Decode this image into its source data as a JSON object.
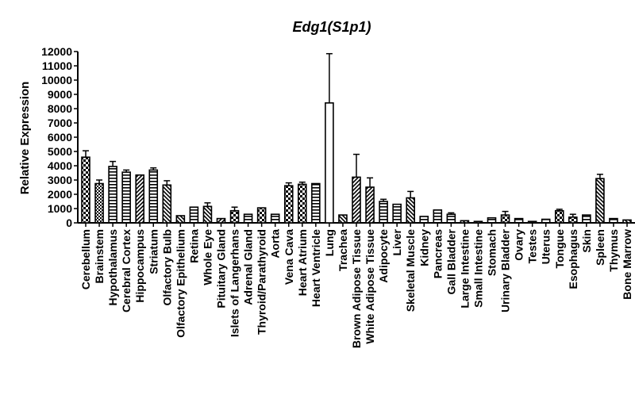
{
  "chart_data": {
    "type": "bar",
    "title": "Edg1(S1p1)",
    "xlabel": "",
    "ylabel": "Relative Expression",
    "ylim": [
      0,
      12000
    ],
    "yticks": [
      0,
      1000,
      2000,
      3000,
      4000,
      5000,
      6000,
      7000,
      8000,
      9000,
      10000,
      11000,
      12000
    ],
    "grid": false,
    "legend": "none",
    "error_bars": "upper",
    "categories": [
      "Cerebellum",
      "Brainstem",
      "Hypothalamus",
      "Cerebral Cortex",
      "Hippocampus",
      "Striatum",
      "Olfactory Bulb",
      "Olfactory Epithelium",
      "Retina",
      "Whole Eye",
      "Pituitary Gland",
      "Islets of Langerhans",
      "Adrenal Gland",
      "Thyroid/Parathyroid",
      "Aorta",
      "Vena Cava",
      "Heart Atrium",
      "Heart Ventricle",
      "Lung",
      "Trachea",
      "Brown Adipose Tissue",
      "White Adipose Tissue",
      "Adipocyte",
      "Liver",
      "Skeletal Muscle",
      "Kidney",
      "Pancreas",
      "Gall Bladder",
      "Large Intestine",
      "Small Intestine",
      "Stomach",
      "Urinary Bladder",
      "Ovary",
      "Testes",
      "Uterus",
      "Tongue",
      "Esophagus",
      "Skin",
      "Spleen",
      "Thymus",
      "Bone Marrow"
    ],
    "values": [
      4600,
      2750,
      3950,
      3550,
      3350,
      3700,
      2650,
      500,
      1100,
      1150,
      300,
      850,
      600,
      1050,
      600,
      2600,
      2700,
      2750,
      8400,
      550,
      3200,
      2500,
      1500,
      1300,
      1750,
      450,
      900,
      600,
      150,
      100,
      350,
      550,
      300,
      100,
      250,
      850,
      400,
      550,
      3100,
      300,
      200
    ],
    "errors": [
      450,
      250,
      350,
      150,
      0,
      150,
      300,
      0,
      0,
      250,
      0,
      250,
      0,
      0,
      0,
      200,
      150,
      0,
      3450,
      0,
      1600,
      650,
      150,
      0,
      450,
      0,
      0,
      100,
      0,
      0,
      0,
      250,
      0,
      0,
      0,
      100,
      200,
      0,
      300,
      0,
      0
    ],
    "patterns": [
      "checker",
      "checker-fine",
      "hstripe",
      "hstripe",
      "diagonal-fwd",
      "hstripe",
      "diagonal-back",
      "diagonal-back",
      "hstripe",
      "diagonal-back",
      "diagonal-fwd",
      "checker",
      "hstripe",
      "checker",
      "hstripe",
      "checker",
      "checker",
      "hstripe",
      "white",
      "diagonal-back",
      "diagonal-fwd",
      "diagonal-fwd",
      "hstripe",
      "hstripe",
      "diagonal-back",
      "hstripe",
      "hstripe",
      "hstripe",
      "diagonal-back",
      "diagonal-back",
      "hstripe",
      "checker",
      "hstripe",
      "hstripe",
      "hstripe",
      "checker",
      "checker",
      "hstripe",
      "diagonal-back",
      "hstripe",
      "diagonal-back"
    ],
    "colors": {
      "stroke": "#000000",
      "fill": "#ffffff",
      "text": "#000000"
    }
  }
}
